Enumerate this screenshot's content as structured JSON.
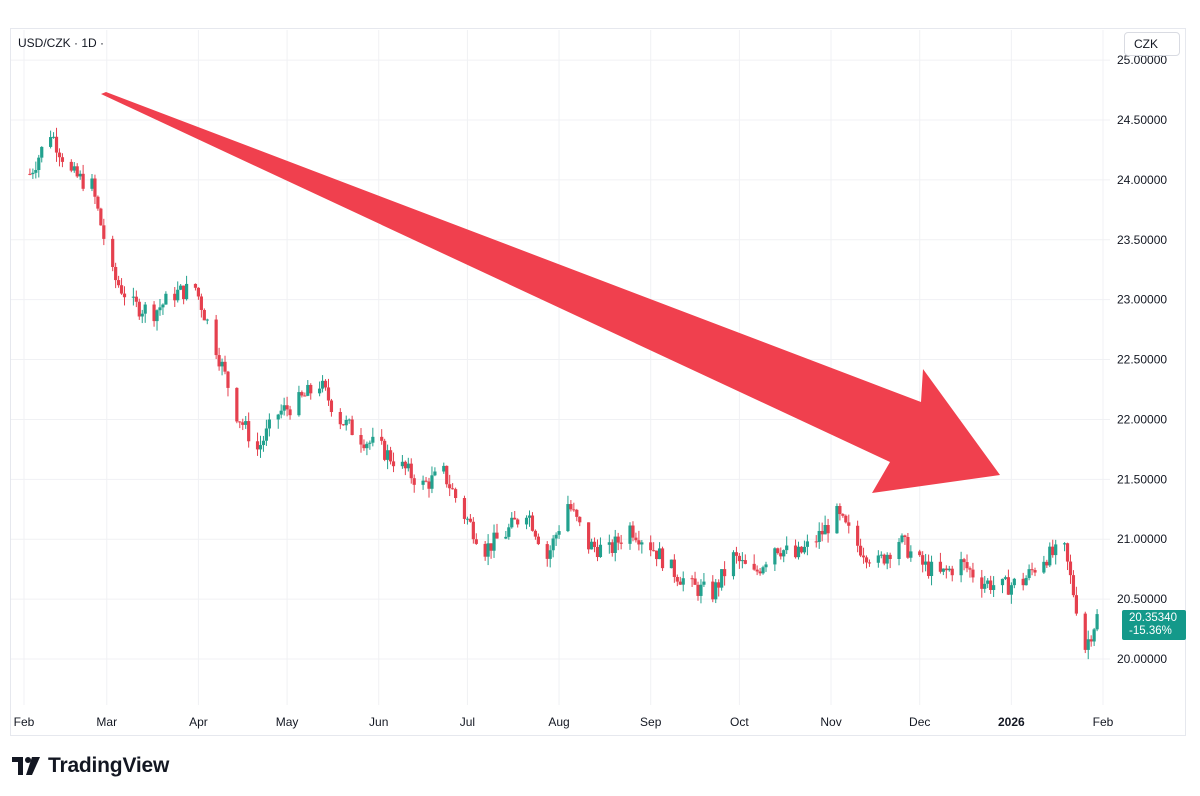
{
  "header": {
    "symbol": "USD/CZK · 1D ·"
  },
  "currency_button": {
    "label": "CZK"
  },
  "last_price": {
    "value": "20.35340",
    "change": "-15.36%",
    "color": "#14998a"
  },
  "brand": {
    "name": "TradingView"
  },
  "colors": {
    "up": "#22a18e",
    "down": "#e5404e",
    "arrow": "#f0404e",
    "grid": "#f0f1f4",
    "axis_text": "#131722"
  },
  "chart_data": {
    "type": "candlestick",
    "title": "",
    "xlabel": "",
    "ylabel": "",
    "ylim": [
      19.6,
      25.05
    ],
    "y_ticks": [
      "20.00000",
      "20.50000",
      "21.00000",
      "21.50000",
      "22.00000",
      "22.50000",
      "23.00000",
      "23.50000",
      "24.00000",
      "24.50000",
      "25.00000"
    ],
    "x_ticks": [
      "Feb",
      "Mar",
      "Apr",
      "May",
      "Jun",
      "Jul",
      "Aug",
      "Sep",
      "Oct",
      "Nov",
      "Dec",
      "2026",
      "Feb"
    ],
    "close_series": [
      [
        "2025-02-03",
        24.05
      ],
      [
        "2025-02-10",
        24.4
      ],
      [
        "2025-02-17",
        24.05
      ],
      [
        "2025-02-24",
        23.95
      ],
      [
        "2025-03-03",
        23.2
      ],
      [
        "2025-03-10",
        22.95
      ],
      [
        "2025-03-17",
        22.9
      ],
      [
        "2025-03-24",
        23.05
      ],
      [
        "2025-03-31",
        23.1
      ],
      [
        "2025-04-07",
        22.6
      ],
      [
        "2025-04-14",
        22.05
      ],
      [
        "2025-04-21",
        21.75
      ],
      [
        "2025-04-28",
        22.05
      ],
      [
        "2025-05-05",
        22.15
      ],
      [
        "2025-05-12",
        22.3
      ],
      [
        "2025-05-19",
        22.0
      ],
      [
        "2025-05-26",
        21.85
      ],
      [
        "2025-06-02",
        21.75
      ],
      [
        "2025-06-09",
        21.6
      ],
      [
        "2025-06-16",
        21.45
      ],
      [
        "2025-06-23",
        21.55
      ],
      [
        "2025-06-30",
        21.2
      ],
      [
        "2025-07-07",
        20.92
      ],
      [
        "2025-07-14",
        21.05
      ],
      [
        "2025-07-21",
        21.25
      ],
      [
        "2025-07-28",
        20.85
      ],
      [
        "2025-08-04",
        21.3
      ],
      [
        "2025-08-11",
        20.95
      ],
      [
        "2025-08-18",
        20.9
      ],
      [
        "2025-08-25",
        21.1
      ],
      [
        "2025-09-01",
        20.95
      ],
      [
        "2025-09-08",
        20.75
      ],
      [
        "2025-09-15",
        20.6
      ],
      [
        "2025-09-22",
        20.55
      ],
      [
        "2025-09-29",
        20.85
      ],
      [
        "2025-10-06",
        20.7
      ],
      [
        "2025-10-13",
        20.95
      ],
      [
        "2025-10-20",
        20.85
      ],
      [
        "2025-10-27",
        21.0
      ],
      [
        "2025-11-03",
        21.2
      ],
      [
        "2025-11-10",
        20.95
      ],
      [
        "2025-11-17",
        20.8
      ],
      [
        "2025-11-24",
        21.0
      ],
      [
        "2025-12-01",
        20.8
      ],
      [
        "2025-12-08",
        20.7
      ],
      [
        "2025-12-15",
        20.8
      ],
      [
        "2025-12-22",
        20.65
      ],
      [
        "2025-12-29",
        20.6
      ],
      [
        "2026-01-05",
        20.65
      ],
      [
        "2026-01-12",
        20.85
      ],
      [
        "2026-01-19",
        20.9
      ],
      [
        "2026-01-26",
        20.1
      ],
      [
        "2026-01-30",
        20.35
      ]
    ]
  }
}
